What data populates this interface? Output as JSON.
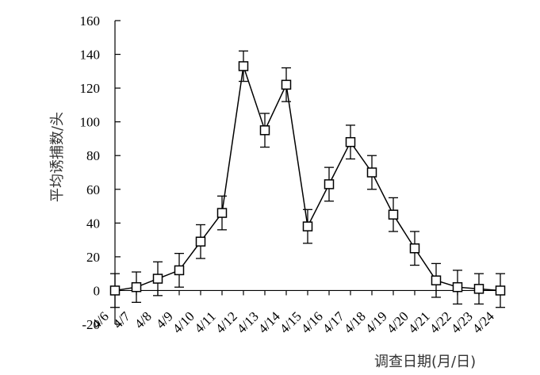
{
  "chart_data": {
    "type": "line",
    "xlabel": "调查日期(月/日)",
    "ylabel": "平均诱捕数/头",
    "ylim": [
      -20,
      160
    ],
    "yticks": [
      -20,
      0,
      20,
      40,
      60,
      80,
      100,
      120,
      140,
      160
    ],
    "categories": [
      "4/6",
      "4/7",
      "4/8",
      "4/9",
      "4/10",
      "4/11",
      "4/12",
      "4/13",
      "4/14",
      "4/15",
      "4/16",
      "4/17",
      "4/18",
      "4/19",
      "4/20",
      "4/21",
      "4/22",
      "4/23",
      "4/24"
    ],
    "series": [
      {
        "values": [
          0,
          2,
          7,
          12,
          29,
          46,
          133,
          95,
          122,
          38,
          63,
          88,
          70,
          45,
          25,
          6,
          2,
          1,
          0
        ],
        "errors": [
          10,
          9,
          10,
          10,
          10,
          10,
          9,
          10,
          10,
          10,
          10,
          10,
          10,
          10,
          10,
          10,
          10,
          9,
          10
        ]
      }
    ],
    "marker": "open-square",
    "line_color": "#000000",
    "grid": false
  }
}
